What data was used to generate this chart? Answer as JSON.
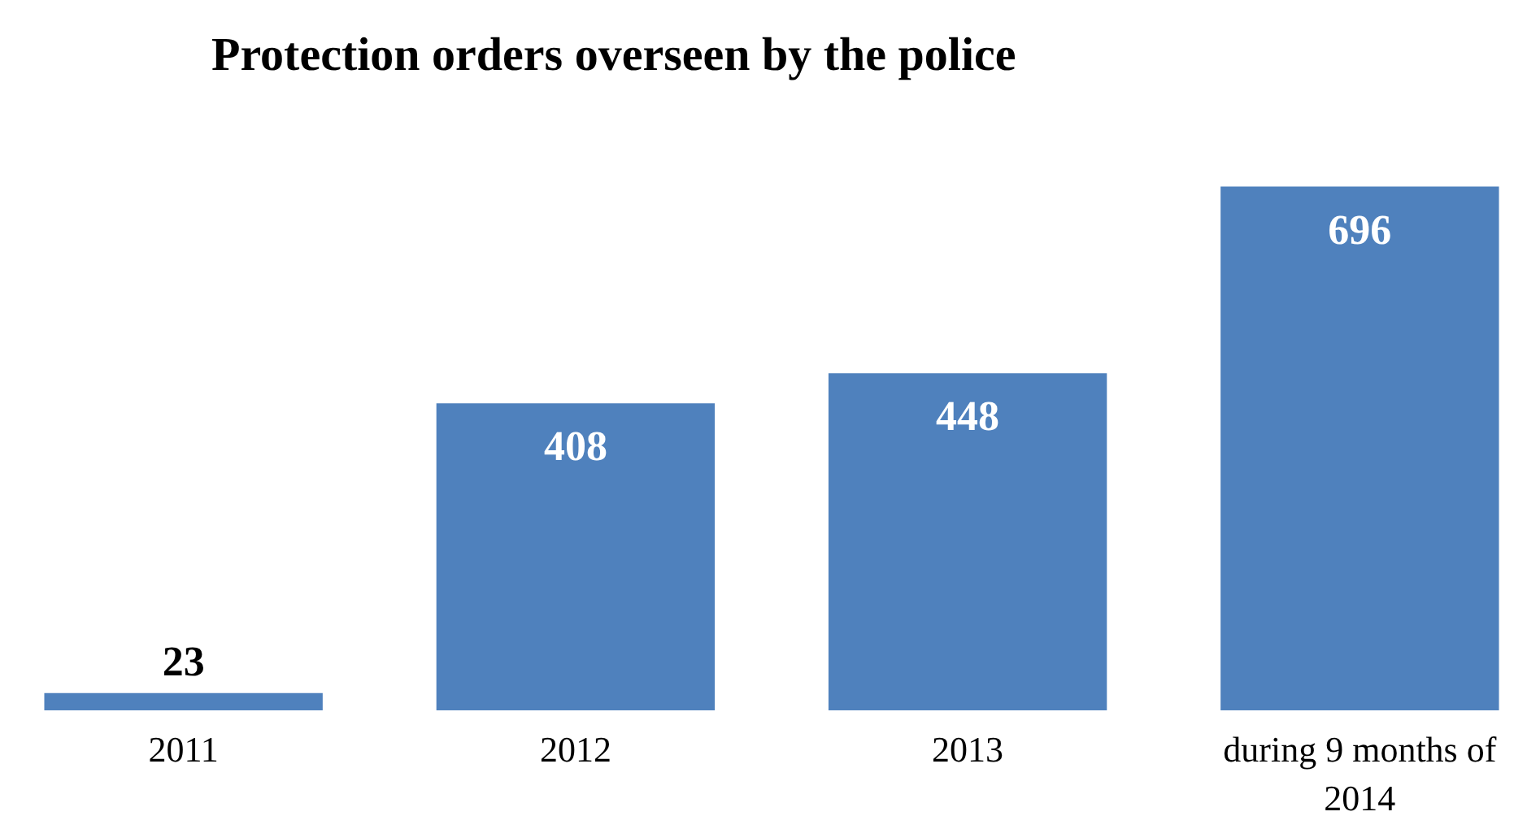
{
  "chart_data": {
    "type": "bar",
    "title": "Protection orders overseen by the police",
    "categories": [
      "2011",
      "2012",
      "2013",
      "during 9 months of 2014"
    ],
    "values": [
      23,
      408,
      448,
      696
    ],
    "color": "#4f81bd",
    "data_labels": true,
    "tick_labels": "x"
  }
}
